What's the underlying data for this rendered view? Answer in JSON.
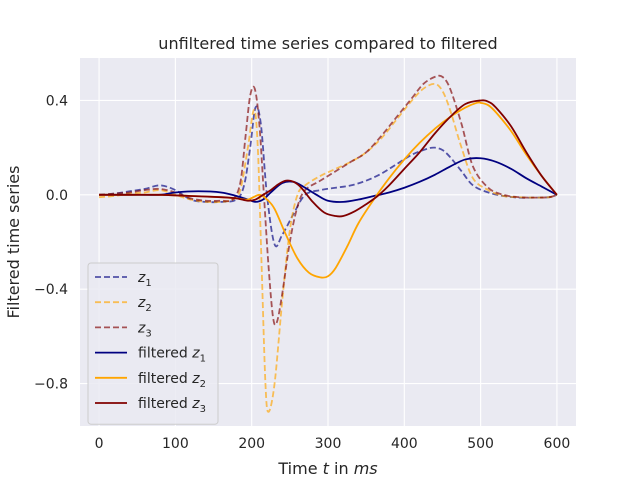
{
  "chart_data": {
    "type": "line",
    "title": "unfiltered time series compared to filtered",
    "xlabel_prefix": "Time ",
    "xlabel_var": "t",
    "xlabel_mid": " in ",
    "xlabel_unit": "ms",
    "ylabel": "Filtered time series",
    "xlim": [
      -25,
      625
    ],
    "ylim": [
      -0.98,
      0.58
    ],
    "xticks": [
      0,
      100,
      200,
      300,
      400,
      500,
      600
    ],
    "xtick_labels": [
      "0",
      "100",
      "200",
      "300",
      "400",
      "500",
      "600"
    ],
    "yticks": [
      -0.8,
      -0.4,
      0.0,
      0.4
    ],
    "ytick_labels": [
      "−0.8",
      "−0.4",
      "0.0",
      "0.4"
    ],
    "grid": true,
    "legend_position": "lower-left",
    "colors": {
      "background": "#eaeaf2",
      "grid": "#ffffff",
      "navy": "#000080",
      "orange": "#ffa500",
      "maroon": "#800000"
    },
    "series": [
      {
        "name": "z",
        "sub": "1",
        "style": "dashed",
        "color": "#000080",
        "opacity": 0.65,
        "x": [
          0,
          20,
          40,
          60,
          80,
          100,
          120,
          140,
          160,
          180,
          190,
          198,
          205,
          212,
          220,
          230,
          240,
          255,
          270,
          290,
          310,
          330,
          350,
          370,
          390,
          410,
          430,
          440,
          450,
          460,
          475,
          490,
          510,
          530,
          550,
          570,
          590,
          600
        ],
        "y": [
          0.0,
          0.005,
          0.015,
          0.025,
          0.04,
          0.02,
          -0.02,
          -0.03,
          -0.03,
          -0.02,
          0.04,
          0.2,
          0.37,
          0.3,
          0.0,
          -0.21,
          -0.17,
          -0.08,
          0.0,
          0.02,
          0.03,
          0.04,
          0.06,
          0.09,
          0.13,
          0.17,
          0.195,
          0.2,
          0.19,
          0.16,
          0.1,
          0.04,
          0.01,
          -0.005,
          -0.012,
          -0.012,
          -0.01,
          0.0
        ]
      },
      {
        "name": "z",
        "sub": "2",
        "style": "dashed",
        "color": "#ffa500",
        "opacity": 0.65,
        "x": [
          0,
          20,
          40,
          60,
          80,
          100,
          120,
          140,
          160,
          175,
          185,
          195,
          203,
          208,
          213,
          218,
          222,
          230,
          240,
          250,
          260,
          270,
          290,
          310,
          330,
          350,
          370,
          390,
          410,
          425,
          440,
          450,
          460,
          475,
          490,
          510,
          530,
          550,
          570,
          590,
          600
        ],
        "y": [
          -0.01,
          -0.005,
          0.005,
          0.01,
          0.02,
          0.0,
          -0.02,
          -0.03,
          -0.03,
          -0.02,
          0.02,
          0.2,
          0.36,
          0.2,
          -0.3,
          -0.8,
          -0.92,
          -0.8,
          -0.45,
          -0.15,
          0.0,
          0.04,
          0.08,
          0.11,
          0.14,
          0.18,
          0.24,
          0.32,
          0.4,
          0.45,
          0.47,
          0.44,
          0.36,
          0.2,
          0.07,
          0.02,
          -0.005,
          -0.01,
          -0.012,
          -0.01,
          0.0
        ]
      },
      {
        "name": "z",
        "sub": "3",
        "style": "dashed",
        "color": "#800000",
        "opacity": 0.65,
        "x": [
          0,
          20,
          40,
          60,
          80,
          100,
          120,
          140,
          160,
          175,
          185,
          192,
          198,
          204,
          210,
          216,
          222,
          228,
          233,
          240,
          250,
          260,
          270,
          290,
          310,
          330,
          350,
          370,
          390,
          410,
          425,
          440,
          450,
          460,
          475,
          490,
          510,
          530,
          550,
          570,
          590,
          600
        ],
        "y": [
          0.0,
          0.005,
          0.01,
          0.02,
          0.025,
          0.01,
          -0.015,
          -0.025,
          -0.025,
          -0.02,
          0.05,
          0.25,
          0.42,
          0.45,
          0.3,
          0.0,
          -0.3,
          -0.52,
          -0.54,
          -0.42,
          -0.2,
          -0.05,
          0.02,
          0.06,
          0.1,
          0.14,
          0.18,
          0.25,
          0.33,
          0.41,
          0.47,
          0.5,
          0.5,
          0.45,
          0.3,
          0.12,
          0.03,
          0.0,
          -0.01,
          -0.012,
          -0.01,
          0.0
        ]
      },
      {
        "name": "filtered z",
        "sub": "1",
        "style": "solid",
        "color": "#000080",
        "opacity": 1,
        "x": [
          0,
          40,
          80,
          100,
          130,
          160,
          180,
          195,
          205,
          215,
          225,
          240,
          255,
          270,
          285,
          300,
          320,
          340,
          360,
          380,
          400,
          420,
          440,
          460,
          480,
          500,
          520,
          540,
          560,
          580,
          600
        ],
        "y": [
          0.0,
          0.0,
          0.0,
          0.01,
          0.015,
          0.01,
          -0.005,
          -0.02,
          -0.03,
          -0.02,
          0.01,
          0.05,
          0.055,
          0.03,
          0.0,
          -0.025,
          -0.03,
          -0.02,
          -0.005,
          0.01,
          0.03,
          0.055,
          0.085,
          0.12,
          0.15,
          0.155,
          0.14,
          0.11,
          0.07,
          0.035,
          0.0
        ]
      },
      {
        "name": "filtered z",
        "sub": "2",
        "style": "solid",
        "color": "#ffa500",
        "opacity": 1,
        "x": [
          0,
          40,
          80,
          120,
          160,
          180,
          195,
          210,
          220,
          230,
          245,
          260,
          275,
          290,
          300,
          310,
          325,
          340,
          360,
          380,
          400,
          420,
          440,
          460,
          480,
          495,
          500,
          510,
          520,
          540,
          560,
          580,
          600
        ],
        "y": [
          0.0,
          0.0,
          0.0,
          -0.005,
          -0.01,
          -0.015,
          -0.02,
          0.0,
          -0.02,
          -0.06,
          -0.17,
          -0.27,
          -0.33,
          -0.35,
          -0.345,
          -0.31,
          -0.22,
          -0.12,
          -0.02,
          0.07,
          0.15,
          0.22,
          0.28,
          0.33,
          0.37,
          0.39,
          0.39,
          0.38,
          0.35,
          0.27,
          0.17,
          0.08,
          0.0
        ]
      },
      {
        "name": "filtered z",
        "sub": "3",
        "style": "solid",
        "color": "#800000",
        "opacity": 1,
        "x": [
          0,
          40,
          80,
          120,
          160,
          180,
          195,
          205,
          215,
          225,
          235,
          245,
          255,
          265,
          280,
          295,
          310,
          320,
          335,
          350,
          365,
          380,
          400,
          420,
          440,
          460,
          480,
          500,
          510,
          520,
          540,
          560,
          580,
          600
        ],
        "y": [
          0.0,
          0.0,
          0.0,
          -0.005,
          -0.01,
          -0.015,
          -0.025,
          -0.02,
          0.0,
          0.02,
          0.045,
          0.06,
          0.055,
          0.03,
          -0.03,
          -0.075,
          -0.09,
          -0.09,
          -0.07,
          -0.04,
          -0.005,
          0.04,
          0.11,
          0.18,
          0.26,
          0.33,
          0.385,
          0.4,
          0.395,
          0.37,
          0.29,
          0.18,
          0.08,
          0.0
        ]
      }
    ]
  }
}
